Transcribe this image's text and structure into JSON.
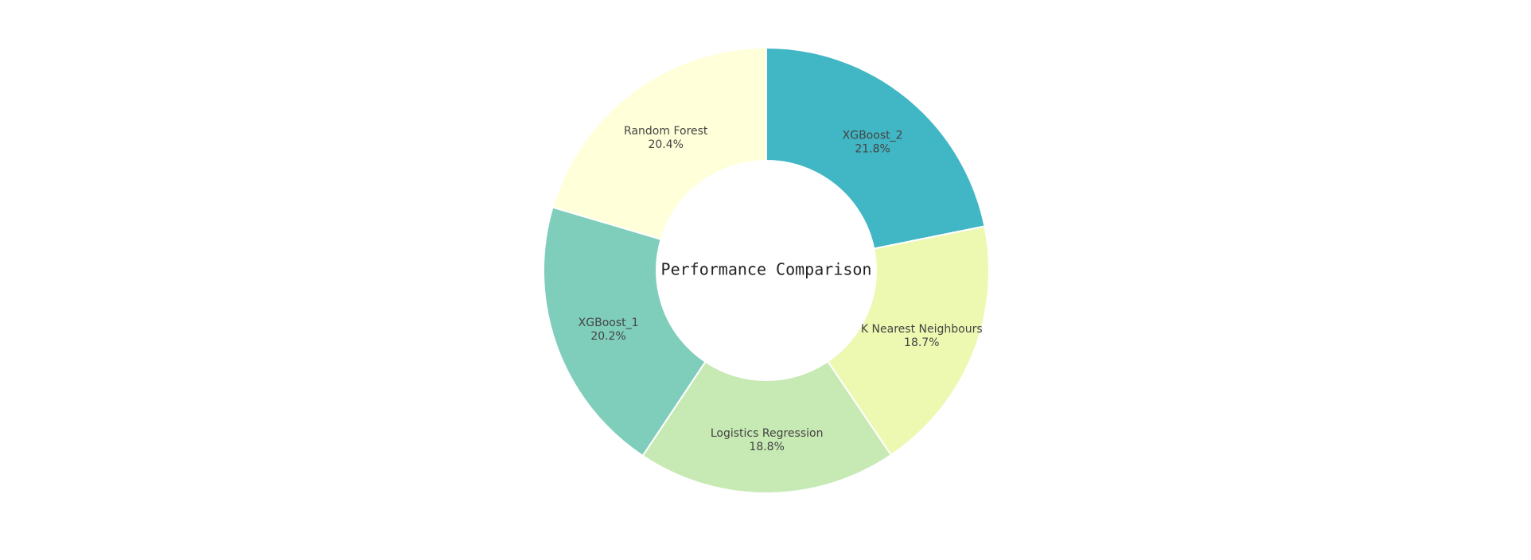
{
  "chart_data": {
    "type": "pie",
    "hole": true,
    "center_text": "Performance Comparison",
    "direction": "clockwise",
    "start": "top",
    "slices": [
      {
        "label": "XGBoost_2",
        "percent_text": "21.8%",
        "value": 21.8,
        "color": "#41b6c4"
      },
      {
        "label": "K Nearest Neighbours",
        "percent_text": "18.7%",
        "value": 18.7,
        "color": "#edf8b1"
      },
      {
        "label": "Logistics Regression",
        "percent_text": "18.8%",
        "value": 18.8,
        "color": "#c7e9b4"
      },
      {
        "label": "XGBoost_1",
        "percent_text": "20.2%",
        "value": 20.2,
        "color": "#7fcdbb"
      },
      {
        "label": "Random Forest",
        "percent_text": "20.4%",
        "value": 20.4,
        "color": "#ffffd9"
      }
    ]
  }
}
